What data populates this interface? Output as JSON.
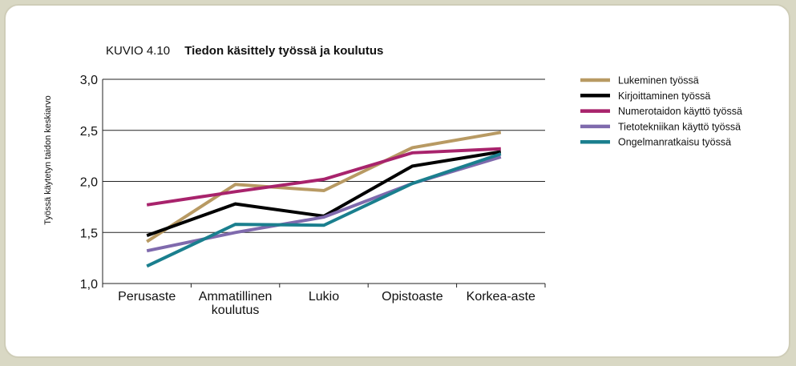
{
  "figure": {
    "label": "KUVIO 4.10",
    "title": "Tiedon käsittely työssä ja koulutus"
  },
  "chart_data": {
    "type": "line",
    "title": "Tiedon käsittely työssä ja koulutus",
    "ylabel": "Työssä käytetyn taidon keskiarvo",
    "xlabel": "",
    "ylim": [
      1.0,
      3.0
    ],
    "yticks": [
      "1,0",
      "1,5",
      "2,0",
      "2,5",
      "3,0"
    ],
    "ytick_values": [
      1.0,
      1.5,
      2.0,
      2.5,
      3.0
    ],
    "grid": true,
    "legend_position": "right",
    "categories": [
      "Perusaste",
      "Ammatillinen koulutus",
      "Lukio",
      "Opistoaste",
      "Korkea-aste"
    ],
    "category_lines": [
      [
        "Perusaste"
      ],
      [
        "Ammatillinen",
        "koulutus"
      ],
      [
        "Lukio"
      ],
      [
        "Opistoaste"
      ],
      [
        "Korkea-aste"
      ]
    ],
    "series": [
      {
        "name": "Lukeminen työssä",
        "color": "#b89a63",
        "values": [
          1.41,
          1.97,
          1.91,
          2.33,
          2.48
        ]
      },
      {
        "name": "Kirjoittaminen työssä",
        "color": "#000000",
        "values": [
          1.47,
          1.78,
          1.66,
          2.15,
          2.29
        ]
      },
      {
        "name": "Numerotaidon käyttö työssä",
        "color": "#a8236c",
        "values": [
          1.77,
          1.9,
          2.02,
          2.28,
          2.32
        ]
      },
      {
        "name": "Tietotekniikan käyttö työssä",
        "color": "#7f6aad",
        "values": [
          1.32,
          1.5,
          1.65,
          1.98,
          2.24
        ]
      },
      {
        "name": "Ongelmanratkaisu työssä",
        "color": "#1a7f8e",
        "values": [
          1.17,
          1.58,
          1.57,
          1.98,
          2.27
        ]
      }
    ]
  }
}
